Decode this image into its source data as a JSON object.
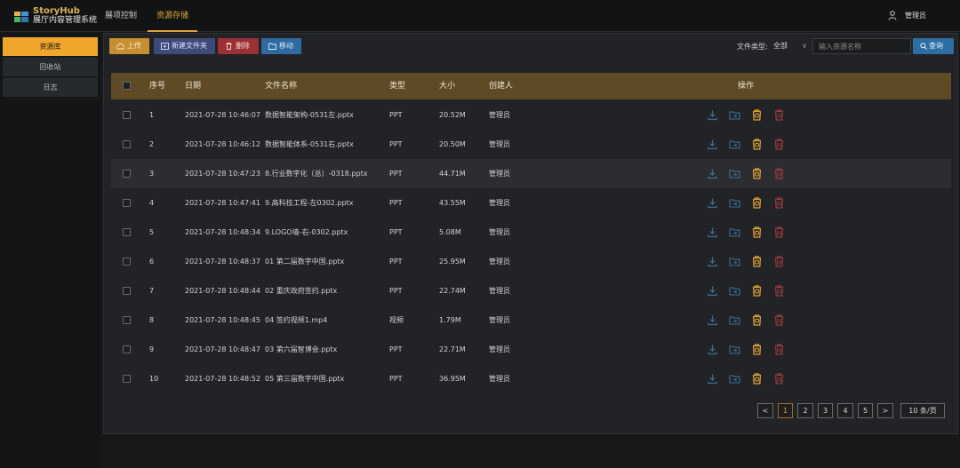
{
  "app": {
    "brand_line1": "StoryHub",
    "brand_line2": "展厅内容管理系统"
  },
  "topnav": [
    "展项控制",
    "资源存储"
  ],
  "user": {
    "name": "管理员"
  },
  "sidebar": {
    "items": [
      "资源库",
      "回收站",
      "日志"
    ]
  },
  "toolbar": {
    "upload": "上传",
    "new_folder": "新建文件夹",
    "delete": "删除",
    "move": "移动",
    "file_type_label": "文件类型:",
    "file_type_value": "全部",
    "search_placeholder": "输入资源名称",
    "query": "查询"
  },
  "table": {
    "headers": [
      "序号",
      "日期",
      "文件名称",
      "类型",
      "大小",
      "创建人",
      "操作"
    ],
    "rows": [
      [
        "1",
        "2021-07-28 10:46:07",
        "数据智能架构-0531左.pptx",
        "PPT",
        "20.52M",
        "管理员"
      ],
      [
        "2",
        "2021-07-28 10:46:12",
        "数据智能体系-0531右.pptx",
        "PPT",
        "20.50M",
        "管理员"
      ],
      [
        "3",
        "2021-07-28 10:47:23",
        "8.行业数字化（总）-0318.pptx",
        "PPT",
        "44.71M",
        "管理员"
      ],
      [
        "4",
        "2021-07-28 10:47:41",
        "9.高科技工程-左0302.pptx",
        "PPT",
        "43.55M",
        "管理员"
      ],
      [
        "5",
        "2021-07-28 10:48:34",
        "9.LOGO墙-右-0302.pptx",
        "PPT",
        "5.08M",
        "管理员"
      ],
      [
        "6",
        "2021-07-28 10:48:37",
        "01 第二届数字中国.pptx",
        "PPT",
        "25.95M",
        "管理员"
      ],
      [
        "7",
        "2021-07-28 10:48:44",
        "02 重庆政府签约.pptx",
        "PPT",
        "22.74M",
        "管理员"
      ],
      [
        "8",
        "2021-07-28 10:48:45",
        "04 签约视频1.mp4",
        "视频",
        "1.79M",
        "管理员"
      ],
      [
        "9",
        "2021-07-28 10:48:47",
        "03 第六届智博会.pptx",
        "PPT",
        "22.71M",
        "管理员"
      ],
      [
        "10",
        "2021-07-28 10:48:52",
        "05 第三届数字中国.pptx",
        "PPT",
        "36.95M",
        "管理员"
      ]
    ],
    "highlighted_row": 3
  },
  "pagination": {
    "prev": "<",
    "pages": [
      "1",
      "2",
      "3",
      "4",
      "5"
    ],
    "current": "1",
    "next": ">",
    "page_size": "10 条/页"
  },
  "colors": {
    "accent": "#f0a52b",
    "header_bg": "#5e4a24",
    "download": "#3f6f95",
    "move": "#3f6f95",
    "restore": "#e5a334",
    "delete": "#9b3a3d"
  }
}
